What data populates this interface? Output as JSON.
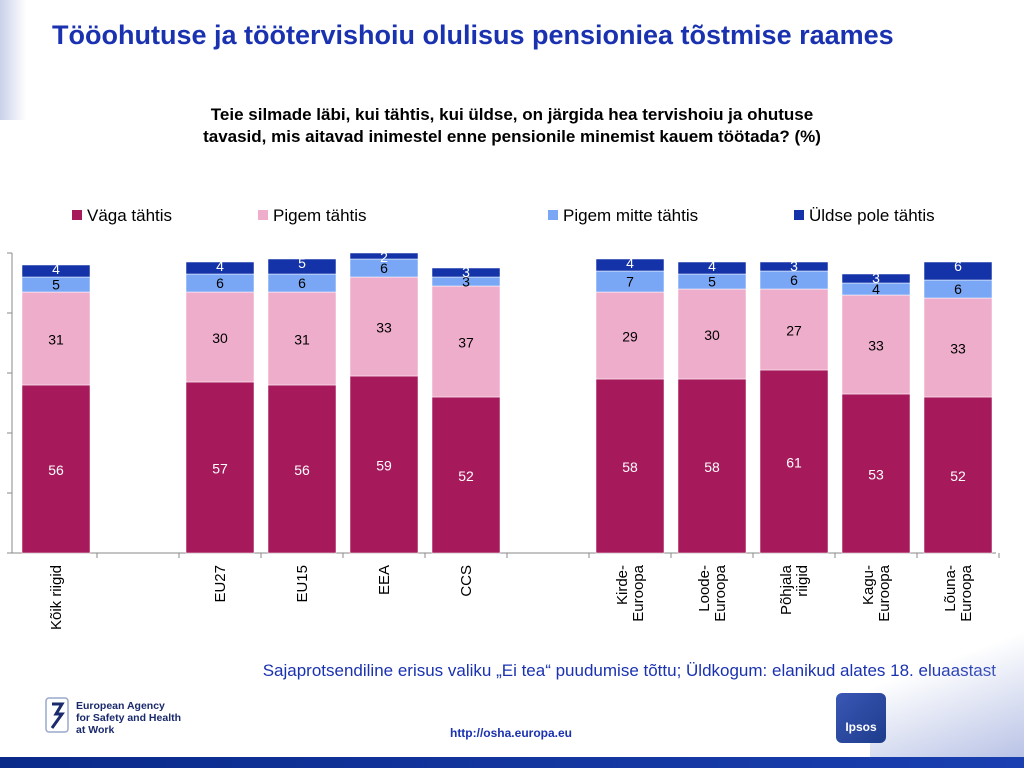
{
  "header": {
    "title": "Tööohutuse ja töötervishoiu olulisus pensioniea tõstmise raames"
  },
  "footer": {
    "note": "Sajaprotsendiline erisus valiku „Ei tea“ puudumise tõttu; Üldkogum: elanikud alates 18. eluaastast",
    "url": "http://osha.europa.eu",
    "agency_text": "European Agency\nfor Safety and Health\nat Work",
    "ipsos_label": "Ipsos"
  },
  "colors": {
    "title": "#1a32b0",
    "vaga": "#a61a5c",
    "pigem": "#efadcc",
    "pigem_mitte": "#7aa7f5",
    "uldse_pole": "#1433a8"
  },
  "chart_data": {
    "type": "bar",
    "stacked": true,
    "title": "Teie silmade läbi, kui tähtis, kui üldse, on järgida hea tervishoiu ja ohutuse\ntavasid, mis aitavad inimestel enne pensionile minemist kauem töötada? (%)",
    "xlabel": "",
    "ylabel": "",
    "ylim": [
      0,
      100
    ],
    "grid": false,
    "legend_position": "top",
    "categories": [
      "Kõik riigid",
      "",
      "EU27",
      "EU15",
      "EEA",
      "CCS",
      "",
      "Kirde-\nEuroopa",
      "Loode-\nEuroopa",
      "Põhjala\nriigid",
      "Kagu-\nEuroopa",
      "Lõuna-\nEuroopa"
    ],
    "series": [
      {
        "name": "Väga tähtis",
        "color": "#a61a5c",
        "values": [
          56,
          null,
          57,
          56,
          59,
          52,
          null,
          58,
          58,
          61,
          53,
          52
        ]
      },
      {
        "name": "Pigem tähtis",
        "color": "#efadcc",
        "values": [
          31,
          null,
          30,
          31,
          33,
          37,
          null,
          29,
          30,
          27,
          33,
          33
        ]
      },
      {
        "name": "Pigem mitte tähtis",
        "color": "#7aa7f5",
        "values": [
          5,
          null,
          6,
          6,
          6,
          3,
          null,
          7,
          5,
          6,
          4,
          6
        ]
      },
      {
        "name": "Üldse pole tähtis",
        "color": "#1433a8",
        "values": [
          4,
          null,
          4,
          5,
          2,
          3,
          null,
          4,
          4,
          3,
          3,
          6
        ]
      }
    ]
  }
}
